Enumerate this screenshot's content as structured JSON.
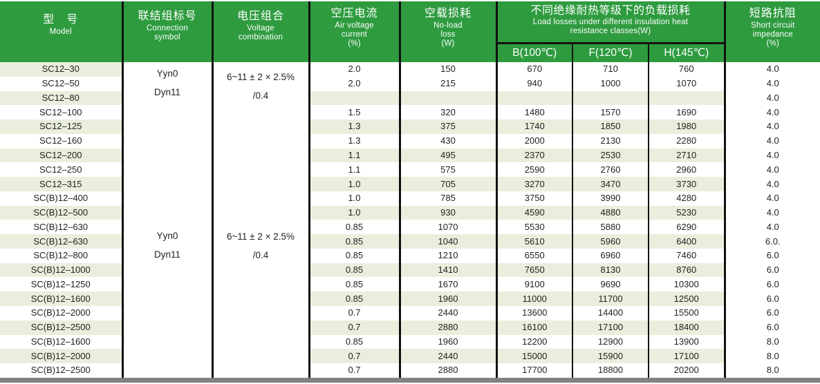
{
  "colors": {
    "header_green": "#2e9b3f",
    "row_stripe": "#e9efdc",
    "bottom_bar_gray": "#828282",
    "header_text": "#ffffff",
    "body_text": "#222222"
  },
  "header": {
    "model_zh": "型　号",
    "model_en": "Model",
    "connection_zh": "联结组标号",
    "connection_en1": "Connection",
    "connection_en2": "symbol",
    "voltage_zh": "电压组合",
    "voltage_en1": "Voltage",
    "voltage_en2": "combination",
    "air_zh": "空压电流",
    "air_en1": "Air voltage",
    "air_en2": "current",
    "air_en3": "(%)",
    "noload_zh": "空载损耗",
    "noload_en1": "No-load",
    "noload_en2": "loss",
    "noload_en3": "(W)",
    "group_zh": "不同绝缘耐热等级下的负载损耗",
    "group_en1": "Load losses under different insulation heat",
    "group_en2": "resistance classes(W)",
    "sub_b": "B(100℃)",
    "sub_f": "F(120℃)",
    "sub_h": "H(145℃)",
    "imp_zh": "短路抗阻",
    "imp_en1": "Short circuit",
    "imp_en2": "impedance",
    "imp_en3": "(%)"
  },
  "merged_cells": {
    "group1": {
      "connection": [
        "Yyn0",
        "Dyn11"
      ],
      "voltage": [
        "6~11 ± 2 × 2.5%",
        "/0.4"
      ]
    },
    "group2": {
      "connection": [
        "Yyn0",
        "Dyn11"
      ],
      "voltage": [
        "6~11 ± 2 × 2.5%",
        "/0.4"
      ]
    }
  },
  "rows": [
    [
      "SC12–30",
      "2.0",
      "150",
      "670",
      "710",
      "760",
      "4.0"
    ],
    [
      "SC12–50",
      "2.0",
      "215",
      "940",
      "1000",
      "1070",
      "4.0"
    ],
    [
      "SC12–80",
      "",
      "",
      "",
      "",
      "",
      "4.0"
    ],
    [
      "SC12–100",
      "1.5",
      "320",
      "1480",
      "1570",
      "1690",
      "4.0"
    ],
    [
      "SC12–125",
      "1.3",
      "375",
      "1740",
      "1850",
      "1980",
      "4.0"
    ],
    [
      "SC12–160",
      "1.3",
      "430",
      "2000",
      "2130",
      "2280",
      "4.0"
    ],
    [
      "SC12–200",
      "1.1",
      "495",
      "2370",
      "2530",
      "2710",
      "4.0"
    ],
    [
      "SC12–250",
      "1.1",
      "575",
      "2590",
      "2760",
      "2960",
      "4.0"
    ],
    [
      "SC12–315",
      "1.0",
      "705",
      "3270",
      "3470",
      "3730",
      "4.0"
    ],
    [
      "SC(B)12–400",
      "1.0",
      "785",
      "3750",
      "3990",
      "4280",
      "4.0"
    ],
    [
      "SC(B)12–500",
      "1.0",
      "930",
      "4590",
      "4880",
      "5230",
      "4.0"
    ],
    [
      "SC(B)12–630",
      "0.85",
      "1070",
      "5530",
      "5880",
      "6290",
      "4.0"
    ],
    [
      "SC(B)12–630",
      "0.85",
      "1040",
      "5610",
      "5960",
      "6400",
      "6.0."
    ],
    [
      "SC(B)12–800",
      "0.85",
      "1210",
      "6550",
      "6960",
      "7460",
      "6.0"
    ],
    [
      "SC(B)12–1000",
      "0.85",
      "1410",
      "7650",
      "8130",
      "8760",
      "6.0"
    ],
    [
      "SC(B)12–1250",
      "0.85",
      "1670",
      "9100",
      "9690",
      "10300",
      "6.0"
    ],
    [
      "SC(B)12–1600",
      "0.85",
      "1960",
      "11000",
      "11700",
      "12500",
      "6.0"
    ],
    [
      "SC(B)12–2000",
      "0.7",
      "2440",
      "13600",
      "14400",
      "15500",
      "6.0"
    ],
    [
      "SC(B)12–2500",
      "0.7",
      "2880",
      "16100",
      "17100",
      "18400",
      "6.0"
    ],
    [
      "SC(B)12–1600",
      "0.85",
      "1960",
      "12200",
      "12900",
      "13900",
      "8.0"
    ],
    [
      "SC(B)12–2000",
      "0.7",
      "2440",
      "15000",
      "15900",
      "17100",
      "8.0"
    ],
    [
      "SC(B)12–2500",
      "0.7",
      "2880",
      "17700",
      "18800",
      "20200",
      "8.0"
    ]
  ]
}
